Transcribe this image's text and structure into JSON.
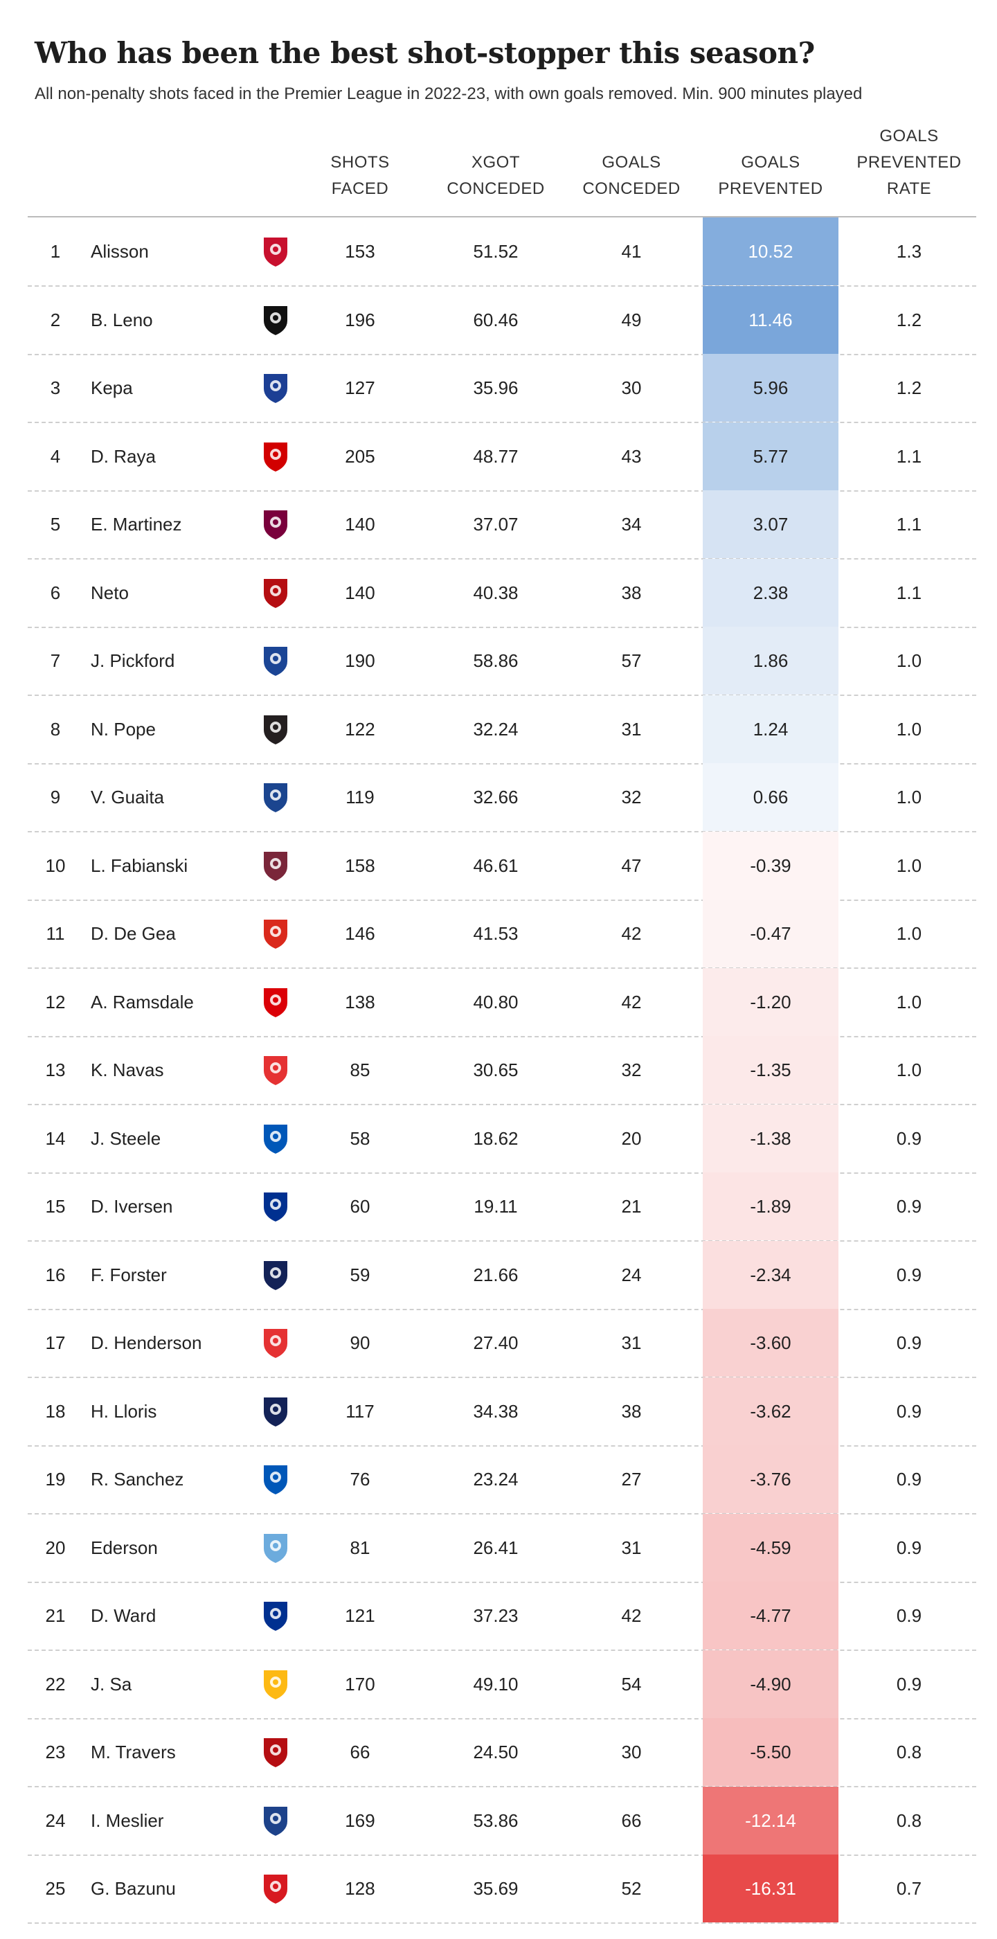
{
  "title": "Who has been the best shot-stopper this season?",
  "subtitle": "All non-penalty shots faced in the Premier League in 2022-23, with own goals removed. Min. 900 minutes played",
  "columns": {
    "shots": [
      "SHOTS",
      "FACED"
    ],
    "xgot": [
      "XGOT",
      "CONCEDED"
    ],
    "goals": [
      "GOALS",
      "CONCEDED"
    ],
    "gp": [
      "GOALS",
      "PREVENTED"
    ],
    "rate": [
      "GOALS",
      "PREVENTED",
      "RATE"
    ]
  },
  "colors": {
    "positive": "#7aa6da",
    "negative": "#e84a4a",
    "club": {
      "liverpool": "#c8102e",
      "fulham": "#111111",
      "chelsea": "#1c3f94",
      "brentford": "#d20000",
      "aston-villa": "#7a003c",
      "bournemouth": "#b50e12",
      "everton": "#1b4595",
      "newcastle": "#241f20",
      "crystal-palace": "#1b458f",
      "west-ham": "#7a263a",
      "man-utd": "#da291c",
      "arsenal": "#db0007",
      "forest": "#e53233",
      "brighton": "#0057b8",
      "leicester": "#003090",
      "tottenham": "#132257",
      "man-city": "#6cabdd",
      "wolves": "#fdb913",
      "leeds": "#1d428a",
      "southampton": "#d71920"
    }
  },
  "chart_data": {
    "type": "table",
    "title": "Who has been the best shot-stopper this season?",
    "subtitle": "All non-penalty shots faced in the Premier League in 2022-23, with own goals removed. Min. 900 minutes played",
    "columns": [
      "SHOTS FACED",
      "XGOT CONCEDED",
      "GOALS CONCEDED",
      "GOALS PREVENTED",
      "GOALS PREVENTED RATE"
    ],
    "rows": [
      {
        "rank": "1",
        "name": "Alisson",
        "club": "liverpool",
        "shots": "153",
        "xgot": "51.52",
        "goals": "41",
        "gp": "10.52",
        "rate": "1.3"
      },
      {
        "rank": "2",
        "name": "B. Leno",
        "club": "fulham",
        "shots": "196",
        "xgot": "60.46",
        "goals": "49",
        "gp": "11.46",
        "rate": "1.2"
      },
      {
        "rank": "3",
        "name": "Kepa",
        "club": "chelsea",
        "shots": "127",
        "xgot": "35.96",
        "goals": "30",
        "gp": "5.96",
        "rate": "1.2"
      },
      {
        "rank": "4",
        "name": "D. Raya",
        "club": "brentford",
        "shots": "205",
        "xgot": "48.77",
        "goals": "43",
        "gp": "5.77",
        "rate": "1.1"
      },
      {
        "rank": "5",
        "name": "E. Martinez",
        "club": "aston-villa",
        "shots": "140",
        "xgot": "37.07",
        "goals": "34",
        "gp": "3.07",
        "rate": "1.1"
      },
      {
        "rank": "6",
        "name": "Neto",
        "club": "bournemouth",
        "shots": "140",
        "xgot": "40.38",
        "goals": "38",
        "gp": "2.38",
        "rate": "1.1"
      },
      {
        "rank": "7",
        "name": "J. Pickford",
        "club": "everton",
        "shots": "190",
        "xgot": "58.86",
        "goals": "57",
        "gp": "1.86",
        "rate": "1.0"
      },
      {
        "rank": "8",
        "name": "N. Pope",
        "club": "newcastle",
        "shots": "122",
        "xgot": "32.24",
        "goals": "31",
        "gp": "1.24",
        "rate": "1.0"
      },
      {
        "rank": "9",
        "name": "V. Guaita",
        "club": "crystal-palace",
        "shots": "119",
        "xgot": "32.66",
        "goals": "32",
        "gp": "0.66",
        "rate": "1.0"
      },
      {
        "rank": "10",
        "name": "L. Fabianski",
        "club": "west-ham",
        "shots": "158",
        "xgot": "46.61",
        "goals": "47",
        "gp": "-0.39",
        "rate": "1.0"
      },
      {
        "rank": "11",
        "name": "D. De Gea",
        "club": "man-utd",
        "shots": "146",
        "xgot": "41.53",
        "goals": "42",
        "gp": "-0.47",
        "rate": "1.0"
      },
      {
        "rank": "12",
        "name": "A. Ramsdale",
        "club": "arsenal",
        "shots": "138",
        "xgot": "40.80",
        "goals": "42",
        "gp": "-1.20",
        "rate": "1.0"
      },
      {
        "rank": "13",
        "name": "K. Navas",
        "club": "forest",
        "shots": "85",
        "xgot": "30.65",
        "goals": "32",
        "gp": "-1.35",
        "rate": "1.0"
      },
      {
        "rank": "14",
        "name": "J. Steele",
        "club": "brighton",
        "shots": "58",
        "xgot": "18.62",
        "goals": "20",
        "gp": "-1.38",
        "rate": "0.9"
      },
      {
        "rank": "15",
        "name": "D. Iversen",
        "club": "leicester",
        "shots": "60",
        "xgot": "19.11",
        "goals": "21",
        "gp": "-1.89",
        "rate": "0.9"
      },
      {
        "rank": "16",
        "name": "F. Forster",
        "club": "tottenham",
        "shots": "59",
        "xgot": "21.66",
        "goals": "24",
        "gp": "-2.34",
        "rate": "0.9"
      },
      {
        "rank": "17",
        "name": "D. Henderson",
        "club": "forest",
        "shots": "90",
        "xgot": "27.40",
        "goals": "31",
        "gp": "-3.60",
        "rate": "0.9"
      },
      {
        "rank": "18",
        "name": "H. Lloris",
        "club": "tottenham",
        "shots": "117",
        "xgot": "34.38",
        "goals": "38",
        "gp": "-3.62",
        "rate": "0.9"
      },
      {
        "rank": "19",
        "name": "R. Sanchez",
        "club": "brighton",
        "shots": "76",
        "xgot": "23.24",
        "goals": "27",
        "gp": "-3.76",
        "rate": "0.9"
      },
      {
        "rank": "20",
        "name": "Ederson",
        "club": "man-city",
        "shots": "81",
        "xgot": "26.41",
        "goals": "31",
        "gp": "-4.59",
        "rate": "0.9"
      },
      {
        "rank": "21",
        "name": "D. Ward",
        "club": "leicester",
        "shots": "121",
        "xgot": "37.23",
        "goals": "42",
        "gp": "-4.77",
        "rate": "0.9"
      },
      {
        "rank": "22",
        "name": "J. Sa",
        "club": "wolves",
        "shots": "170",
        "xgot": "49.10",
        "goals": "54",
        "gp": "-4.90",
        "rate": "0.9"
      },
      {
        "rank": "23",
        "name": "M. Travers",
        "club": "bournemouth",
        "shots": "66",
        "xgot": "24.50",
        "goals": "30",
        "gp": "-5.50",
        "rate": "0.8"
      },
      {
        "rank": "24",
        "name": "I. Meslier",
        "club": "leeds",
        "shots": "169",
        "xgot": "53.86",
        "goals": "66",
        "gp": "-12.14",
        "rate": "0.8"
      },
      {
        "rank": "25",
        "name": "G. Bazunu",
        "club": "southampton",
        "shots": "128",
        "xgot": "35.69",
        "goals": "52",
        "gp": "-16.31",
        "rate": "0.7"
      }
    ]
  }
}
